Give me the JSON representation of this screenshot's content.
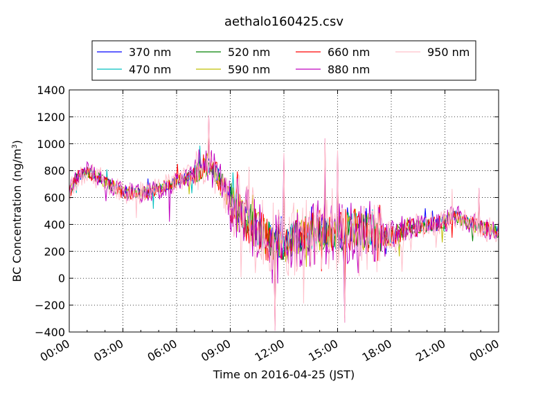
{
  "chart_data": {
    "type": "line",
    "title": "aethalo160425.csv",
    "xlabel": "Time on 2016-04-25 (JST)",
    "ylabel": "BC Concentration (ng/m³)",
    "ylabel_parts": {
      "main": "BC Concentration (ng/m",
      "sup": "3",
      "tail": ")"
    },
    "x_unit": "hours",
    "xlim": [
      0,
      24
    ],
    "ylim": [
      -400,
      1400
    ],
    "x_ticks": [
      0,
      3,
      6,
      9,
      12,
      15,
      18,
      21,
      24
    ],
    "x_tick_labels": [
      "00:00",
      "03:00",
      "06:00",
      "09:00",
      "12:00",
      "15:00",
      "18:00",
      "21:00",
      "00:00"
    ],
    "y_ticks": [
      -400,
      -200,
      0,
      200,
      400,
      600,
      800,
      1000,
      1200,
      1400
    ],
    "y_tick_labels": [
      "−400",
      "−200",
      "0",
      "200",
      "400",
      "600",
      "800",
      "1000",
      "1200",
      "1400"
    ],
    "grid": true,
    "legend_placement": "top-center",
    "series": [
      {
        "name": "370 nm",
        "color": "#0000ff",
        "noise": 45,
        "spike": 0.5
      },
      {
        "name": "470 nm",
        "color": "#00bfbf",
        "noise": 50,
        "spike": 0.55
      },
      {
        "name": "520 nm",
        "color": "#008000",
        "noise": 55,
        "spike": 0.6
      },
      {
        "name": "590 nm",
        "color": "#bfbf00",
        "noise": 60,
        "spike": 0.7
      },
      {
        "name": "660 nm",
        "color": "#ff0000",
        "noise": 65,
        "spike": 0.75
      },
      {
        "name": "880 nm",
        "color": "#bf00bf",
        "noise": 95,
        "spike": 1.0
      },
      {
        "name": "950 nm",
        "color": "#ffc0cb",
        "noise": 110,
        "spike": 1.15
      }
    ],
    "base_profile": {
      "x": [
        0,
        0.5,
        1,
        2,
        3,
        4,
        5,
        6,
        7,
        7.8,
        8.5,
        9,
        10,
        11,
        12,
        13,
        14,
        15,
        16,
        17,
        18,
        19,
        20,
        21,
        21.5,
        22,
        23,
        24
      ],
      "y": [
        640,
        760,
        790,
        720,
        640,
        630,
        660,
        720,
        780,
        850,
        720,
        570,
        430,
        300,
        260,
        310,
        350,
        330,
        370,
        330,
        310,
        380,
        390,
        420,
        470,
        430,
        380,
        340
      ]
    },
    "peaks": [
      {
        "x": 7.8,
        "y": 1210
      },
      {
        "x": 11.5,
        "y": -390
      },
      {
        "x": 14.3,
        "y": 1040
      },
      {
        "x": 15.0,
        "y": 950
      },
      {
        "x": 15.4,
        "y": -330
      },
      {
        "x": 12.0,
        "y": 930
      },
      {
        "x": 22.9,
        "y": 670
      }
    ]
  }
}
